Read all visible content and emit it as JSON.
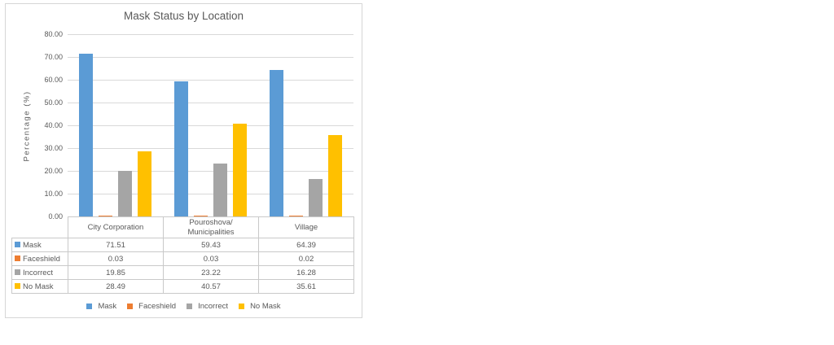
{
  "chart_data": {
    "type": "bar",
    "title": "Mask Status by Location",
    "ylabel": "Percentage (%)",
    "xlabel": "",
    "categories": [
      "City Corporation",
      "Pouroshova/\nMunicipalities",
      "Village"
    ],
    "series": [
      {
        "name": "Mask",
        "color": "#5B9BD5",
        "values": [
          71.51,
          59.43,
          64.39
        ]
      },
      {
        "name": "Faceshield",
        "color": "#ED7D31",
        "values": [
          0.03,
          0.03,
          0.02
        ]
      },
      {
        "name": "Incorrect",
        "color": "#A5A5A5",
        "values": [
          19.85,
          23.22,
          16.28
        ]
      },
      {
        "name": "No Mask",
        "color": "#FFC000",
        "values": [
          28.49,
          40.57,
          35.61
        ]
      }
    ],
    "ylim": [
      0,
      80
    ],
    "yticks": [
      "0.00",
      "10.00",
      "20.00",
      "30.00",
      "40.00",
      "50.00",
      "60.00",
      "70.00",
      "80.00"
    ],
    "grid": true,
    "data_table_shown": true,
    "legend_position": "bottom",
    "legend": [
      "Mask",
      "Faceshield",
      "Incorrect",
      "No Mask"
    ]
  }
}
